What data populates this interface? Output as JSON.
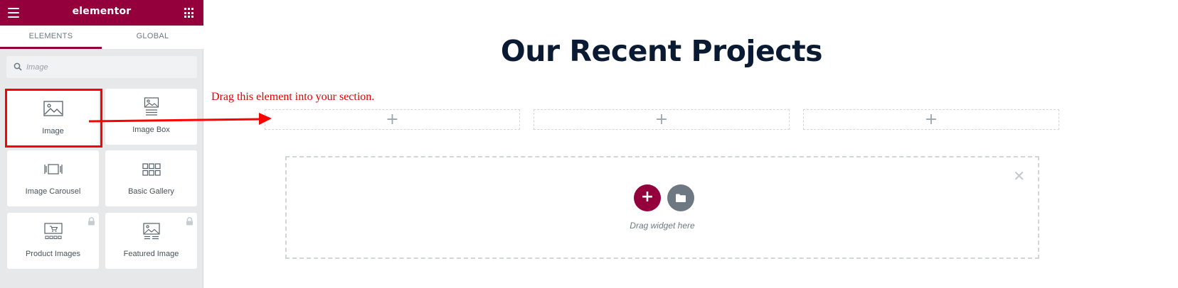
{
  "app": {
    "logo": "elementor"
  },
  "tabs": [
    {
      "label": "ELEMENTS"
    },
    {
      "label": "GLOBAL"
    }
  ],
  "search": {
    "placeholder": "Image"
  },
  "widgets": [
    {
      "label": "Image",
      "icon": "image-icon"
    },
    {
      "label": "Image Box",
      "icon": "image-box-icon"
    },
    {
      "label": "Image Carousel",
      "icon": "image-carousel-icon"
    },
    {
      "label": "Basic Gallery",
      "icon": "gallery-icon"
    },
    {
      "label": "Product Images",
      "icon": "product-images-icon",
      "locked": true
    },
    {
      "label": "Featured Image",
      "icon": "featured-image-icon",
      "locked": true
    }
  ],
  "canvas": {
    "heading": "Our Recent Projects",
    "annotation": "Drag this element into your section.",
    "dropzone_text": "Drag widget here"
  },
  "colors": {
    "brand": "#93003c",
    "annotation": "#ff0000",
    "heading": "#0b1a33"
  }
}
